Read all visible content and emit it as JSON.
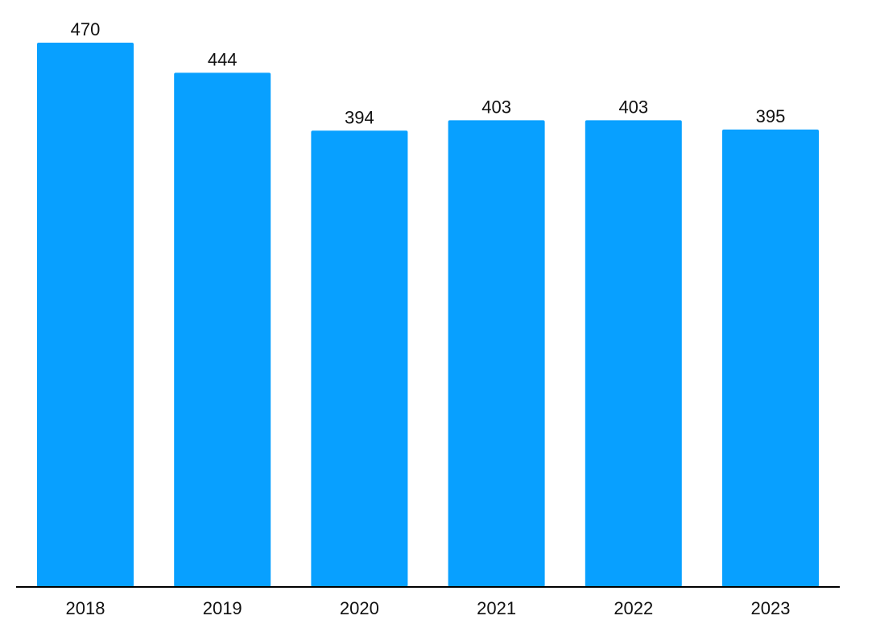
{
  "chart_data": {
    "type": "bar",
    "categories": [
      "2018",
      "2019",
      "2020",
      "2021",
      "2022",
      "2023"
    ],
    "values": [
      470,
      444,
      394,
      403,
      403,
      395
    ],
    "data_labels": [
      "470",
      "444",
      "394",
      "403",
      "403",
      "395"
    ],
    "title": "",
    "xlabel": "",
    "ylabel": "",
    "ylim": [
      0,
      470
    ],
    "grid": false,
    "legend": "none",
    "colors": {
      "bar": "#08a0ff",
      "axis": "#000000",
      "text": "#111111"
    }
  }
}
